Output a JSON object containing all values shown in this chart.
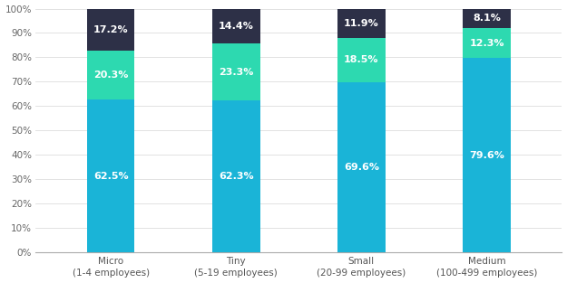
{
  "categories": [
    "Micro\n(1-4 employees)",
    "Tiny\n(5-19 employees)",
    "Small\n(20-99 employees)",
    "Medium\n(100-499 employees)"
  ],
  "male_values": [
    62.5,
    62.3,
    69.6,
    79.6
  ],
  "mixed_values": [
    20.3,
    23.3,
    18.5,
    12.3
  ],
  "female_values": [
    17.2,
    14.4,
    11.9,
    8.1
  ],
  "male_color": "#1AB4D7",
  "mixed_color": "#2DD9B0",
  "female_color": "#2D3047",
  "bar_width": 0.38,
  "ylim": [
    0,
    100
  ],
  "yticks": [
    0,
    10,
    20,
    30,
    40,
    50,
    60,
    70,
    80,
    90,
    100
  ],
  "ytick_labels": [
    "0%",
    "10%",
    "20%",
    "30%",
    "40%",
    "50%",
    "60%",
    "70%",
    "80%",
    "90%",
    "100%"
  ],
  "text_color": "#ffffff",
  "label_fontsize": 8,
  "tick_fontsize": 7.5,
  "background_color": "#ffffff",
  "grid_color": "#dddddd"
}
